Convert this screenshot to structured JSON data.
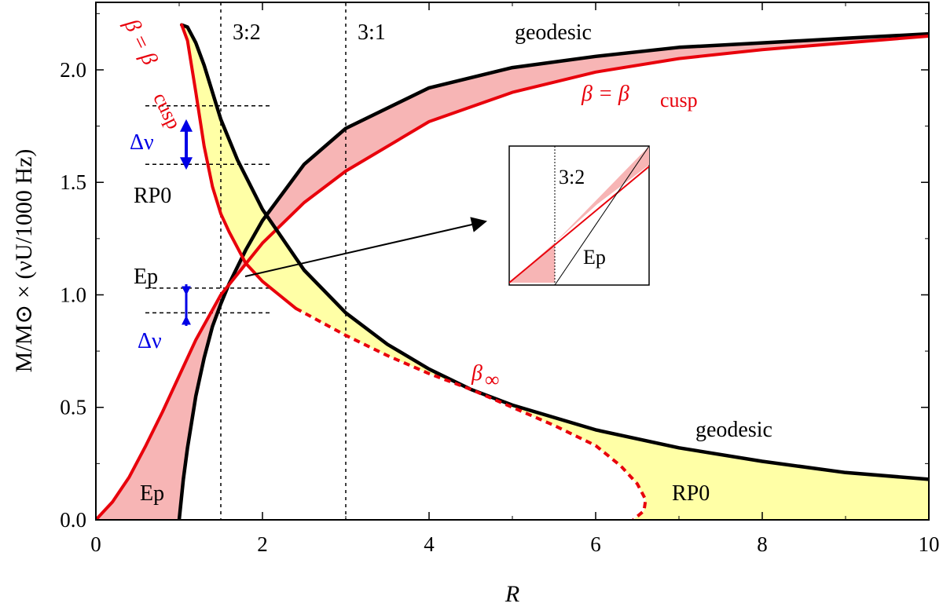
{
  "chart_data": {
    "type": "line",
    "xlabel": "R",
    "ylabel": "M/M⊙ × (νU/1000 Hz)",
    "xlim": [
      0,
      10
    ],
    "ylim": [
      0,
      2.3
    ],
    "x_ticks": [
      0,
      2,
      4,
      6,
      8,
      10
    ],
    "y_ticks": [
      0.0,
      0.5,
      1.0,
      1.5,
      2.0
    ],
    "x_tick_labels": [
      "0",
      "2",
      "4",
      "6",
      "8",
      "10"
    ],
    "y_tick_labels": [
      "0.0",
      "0.5",
      "1.0",
      "1.5",
      "2.0"
    ],
    "grid": false,
    "vlines": [
      {
        "x": 1.5,
        "label": "3:2"
      },
      {
        "x": 3.0,
        "label": "3:1"
      }
    ],
    "series": [
      {
        "name": "Ep geodesic",
        "color": "#000000",
        "values": [
          [
            1.0,
            0.0
          ],
          [
            1.05,
            0.18
          ],
          [
            1.1,
            0.32
          ],
          [
            1.2,
            0.55
          ],
          [
            1.3,
            0.72
          ],
          [
            1.4,
            0.86
          ],
          [
            1.5,
            0.96
          ],
          [
            1.6,
            1.05
          ],
          [
            1.8,
            1.2
          ],
          [
            2.0,
            1.33
          ],
          [
            2.5,
            1.58
          ],
          [
            3.0,
            1.74
          ],
          [
            4.0,
            1.92
          ],
          [
            5.0,
            2.01
          ],
          [
            6.0,
            2.06
          ],
          [
            7.0,
            2.1
          ],
          [
            8.0,
            2.12
          ],
          [
            9.0,
            2.14
          ],
          [
            10.0,
            2.16
          ]
        ]
      },
      {
        "name": "Ep β=βcusp",
        "color": "#e8000b",
        "values": [
          [
            0.0,
            0.0
          ],
          [
            0.2,
            0.08
          ],
          [
            0.4,
            0.19
          ],
          [
            0.6,
            0.33
          ],
          [
            0.8,
            0.48
          ],
          [
            1.0,
            0.64
          ],
          [
            1.2,
            0.8
          ],
          [
            1.5,
            1.0
          ],
          [
            2.0,
            1.23
          ],
          [
            2.5,
            1.41
          ],
          [
            3.0,
            1.55
          ],
          [
            4.0,
            1.77
          ],
          [
            5.0,
            1.9
          ],
          [
            6.0,
            1.99
          ],
          [
            7.0,
            2.05
          ],
          [
            8.0,
            2.09
          ],
          [
            9.0,
            2.12
          ],
          [
            10.0,
            2.15
          ]
        ]
      },
      {
        "name": "RP0 geodesic",
        "color": "#000000",
        "values": [
          [
            1.03,
            2.2
          ],
          [
            1.1,
            2.19
          ],
          [
            1.2,
            2.12
          ],
          [
            1.3,
            2.02
          ],
          [
            1.4,
            1.9
          ],
          [
            1.5,
            1.78
          ],
          [
            1.7,
            1.6
          ],
          [
            2.0,
            1.38
          ],
          [
            2.5,
            1.11
          ],
          [
            3.0,
            0.92
          ],
          [
            3.5,
            0.78
          ],
          [
            4.0,
            0.67
          ],
          [
            4.5,
            0.58
          ],
          [
            5.0,
            0.51
          ],
          [
            6.0,
            0.4
          ],
          [
            7.0,
            0.32
          ],
          [
            8.0,
            0.26
          ],
          [
            9.0,
            0.21
          ],
          [
            10.0,
            0.18
          ]
        ]
      },
      {
        "name": "RP0 β=βcusp",
        "color": "#e8000b",
        "values": [
          [
            1.03,
            2.2
          ],
          [
            1.1,
            2.13
          ],
          [
            1.2,
            1.9
          ],
          [
            1.3,
            1.66
          ],
          [
            1.4,
            1.48
          ],
          [
            1.5,
            1.36
          ],
          [
            1.6,
            1.28
          ],
          [
            1.8,
            1.14
          ],
          [
            2.0,
            1.06
          ],
          [
            2.2,
            1.0
          ],
          [
            2.4,
            0.94
          ]
        ]
      },
      {
        "name": "β∞",
        "color": "#e8000b",
        "dashed": true,
        "values": [
          [
            2.4,
            0.94
          ],
          [
            3.0,
            0.82
          ],
          [
            3.5,
            0.73
          ],
          [
            4.0,
            0.65
          ],
          [
            4.5,
            0.58
          ],
          [
            5.0,
            0.5
          ],
          [
            5.5,
            0.42
          ],
          [
            6.0,
            0.33
          ],
          [
            6.3,
            0.24
          ],
          [
            6.5,
            0.16
          ],
          [
            6.6,
            0.09
          ],
          [
            6.58,
            0.04
          ],
          [
            6.45,
            0.0
          ]
        ]
      }
    ],
    "shaded_regions": [
      {
        "between": [
          "Ep β=βcusp",
          "Ep geodesic"
        ],
        "color": "#f7b5b5"
      },
      {
        "between": [
          "RP0 geodesic",
          "RP0 β=βcusp"
        ],
        "color": "#ffffa6"
      }
    ],
    "reference_levels": {
      "RP0": {
        "upper": 1.84,
        "lower": 1.58
      },
      "Ep": {
        "upper": 1.03,
        "lower": 0.92
      }
    },
    "annotations": {
      "geodesic_top": "geodesic",
      "geodesic_bottom": "geodesic",
      "beta_cusp": "β = β",
      "cusp_sub": "cusp",
      "beta_inf": "β",
      "inf_sub": "∞",
      "delta_nu": "Δν",
      "rp0": "RP0",
      "ep": "Ep",
      "ratio_32": "3:2",
      "ratio_31": "3:1"
    },
    "inset": {
      "label_ratio": "3:2",
      "label_ep": "Ep"
    },
    "colors": {
      "red": "#e8000b",
      "pink": "#f7b5b5",
      "yellow": "#ffffa6",
      "blue": "#0000e6",
      "black": "#000000"
    }
  }
}
